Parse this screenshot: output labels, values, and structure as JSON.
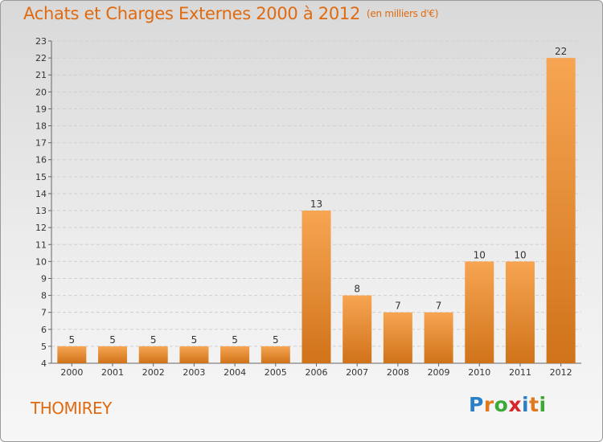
{
  "header": {
    "title": "Achats et Charges Externes 2000 à 2012",
    "subtitle": "(en milliers d'€)"
  },
  "footer": {
    "city": "THOMIREY",
    "logo": {
      "text": "Proxiti",
      "letter_colors": [
        "#2a7fc9",
        "#e07a1f",
        "#3aaa35",
        "#d9262b",
        "#2a7fc9",
        "#e07a1f",
        "#3aaa35"
      ]
    }
  },
  "colors": {
    "bar_light": "#f7a552",
    "bar_dark": "#d0731a",
    "title": "#e06a10",
    "grid": "#cfcfcf"
  },
  "chart_data": {
    "type": "bar",
    "title": "Achats et Charges Externes 2000 à 2012",
    "subtitle": "(en milliers d'€)",
    "categories": [
      "2000",
      "2001",
      "2002",
      "2003",
      "2004",
      "2005",
      "2006",
      "2007",
      "2008",
      "2009",
      "2010",
      "2011",
      "2012"
    ],
    "values": [
      5,
      5,
      5,
      5,
      5,
      5,
      13,
      8,
      7,
      7,
      10,
      10,
      22
    ],
    "ylim": [
      4,
      23
    ],
    "yticks": [
      4,
      5,
      6,
      7,
      8,
      9,
      10,
      11,
      12,
      13,
      14,
      15,
      16,
      17,
      18,
      19,
      20,
      21,
      22,
      23
    ],
    "xlabel": "",
    "ylabel": "",
    "grid": true,
    "legend": "none"
  }
}
